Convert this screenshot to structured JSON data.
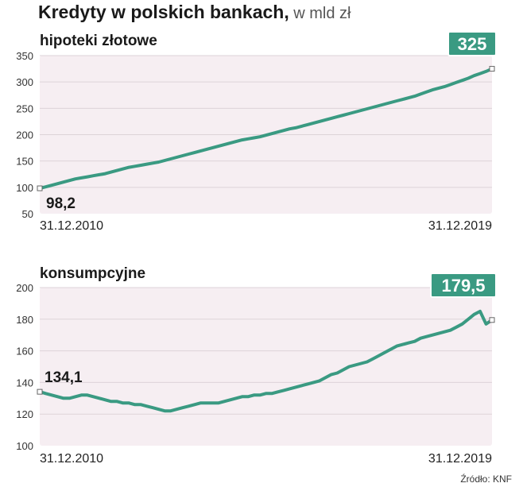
{
  "title_bold": "Kredyty w polskich bankach,",
  "title_unit": " w mld zł",
  "source": "Źródło: KNF",
  "colors": {
    "line": "#3a9a82",
    "plot_bg": "#f6eef2",
    "badge": "#3a9a82",
    "grid": "#ddd3d8"
  },
  "chart_data": [
    {
      "type": "line",
      "title": "hipoteki złotowe",
      "x_start_label": "31.12.2010",
      "x_end_label": "31.12.2019",
      "ylim": [
        50,
        350
      ],
      "yticks": [
        50,
        100,
        150,
        200,
        250,
        300,
        350
      ],
      "grid": true,
      "start_label": "98,2",
      "end_badge": "325",
      "values": [
        98.2,
        101,
        104,
        107,
        110,
        113,
        116,
        118,
        120,
        122,
        124,
        126,
        129,
        132,
        135,
        138,
        140,
        142,
        144,
        146,
        148,
        151,
        154,
        157,
        160,
        163,
        166,
        169,
        172,
        175,
        178,
        181,
        184,
        187,
        190,
        192,
        194,
        196,
        199,
        202,
        205,
        208,
        211,
        213,
        216,
        219,
        222,
        225,
        228,
        231,
        234,
        237,
        240,
        243,
        246,
        249,
        252,
        255,
        258,
        261,
        264,
        267,
        270,
        273,
        277,
        281,
        285,
        288,
        291,
        295,
        299,
        303,
        307,
        312,
        316,
        320,
        325
      ]
    },
    {
      "type": "line",
      "title": "konsumpcyjne",
      "x_start_label": "31.12.2010",
      "x_end_label": "31.12.2019",
      "ylim": [
        100,
        200
      ],
      "yticks": [
        100,
        120,
        140,
        160,
        180,
        200
      ],
      "grid": true,
      "start_label": "134,1",
      "end_badge": "179,5",
      "values": [
        134.1,
        133,
        132,
        131,
        130,
        130,
        131,
        132,
        132,
        131,
        130,
        129,
        128,
        128,
        127,
        127,
        126,
        126,
        125,
        124,
        123,
        122,
        122,
        123,
        124,
        125,
        126,
        127,
        127,
        127,
        127,
        128,
        129,
        130,
        131,
        131,
        132,
        132,
        133,
        133,
        134,
        135,
        136,
        137,
        138,
        139,
        140,
        141,
        143,
        145,
        146,
        148,
        150,
        151,
        152,
        153,
        155,
        157,
        159,
        161,
        163,
        164,
        165,
        166,
        168,
        169,
        170,
        171,
        172,
        173,
        175,
        177,
        180,
        183,
        185,
        177,
        179.5
      ]
    }
  ]
}
